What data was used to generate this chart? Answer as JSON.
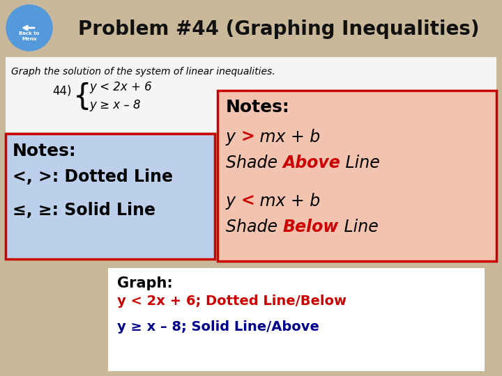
{
  "title": "Problem #44 (Graphing Inequalities)",
  "bg_color": "#c9b99a",
  "title_color": "#111111",
  "title_fontsize": 20,
  "white_box_color": "#f5f5f5",
  "blue_box_color": "#bdd0eb",
  "salmon_box_color": "#f2c4b0",
  "bottom_box_color": "#ffffff",
  "red_color": "#cc0000",
  "dark_blue": "#00008b",
  "black": "#000000",
  "problem_text": "Graph the solution of the system of linear inequalities.",
  "problem_num": "44)",
  "ineq1": "y < 2x + 6",
  "ineq2": "y ≥ x – 8",
  "left_notes_title": "Notes:",
  "left_note1": "<, >: Dotted Line",
  "left_note2": "≤, ≥: Solid Line",
  "right_notes_title": "Notes:",
  "graph_title": "Graph:",
  "graph_line1": "y < 2x + 6; Dotted Line/Below",
  "graph_line2": "y ≥ x – 8; Solid Line/Above"
}
